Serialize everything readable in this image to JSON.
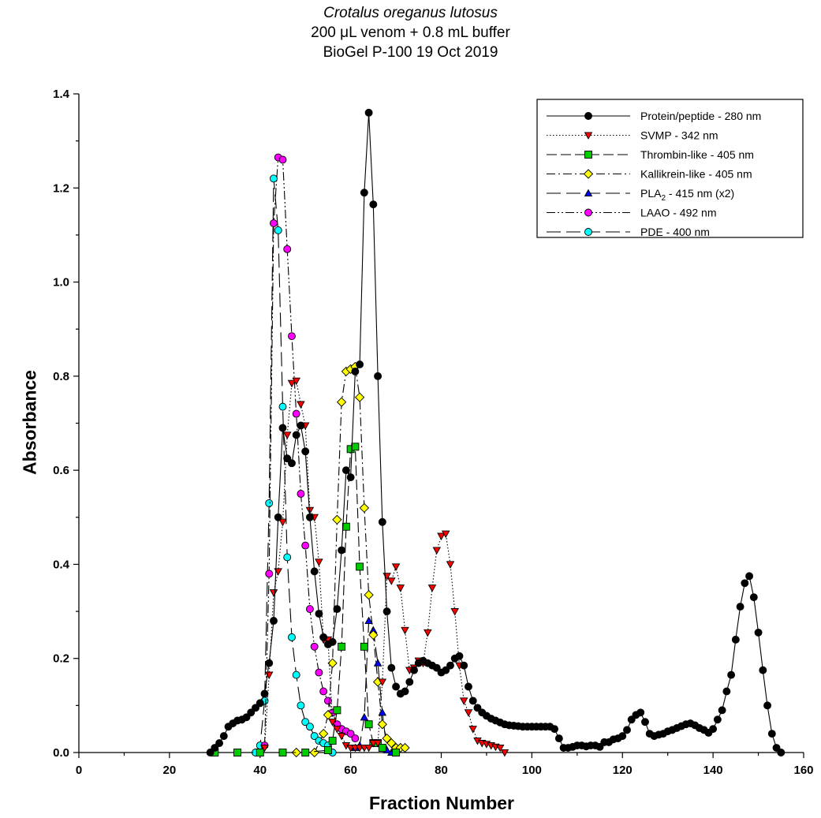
{
  "chart_data": {
    "type": "line",
    "title_lines": [
      "Crotalus oreganus lutosus",
      "200 μL venom + 0.8 mL buffer",
      "BioGel P-100 19 Oct 2019"
    ],
    "xlabel": "Fraction Number",
    "ylabel": "Absorbance",
    "xlim": [
      0,
      160
    ],
    "ylim": [
      0,
      1.4
    ],
    "x_ticks": [
      0,
      20,
      40,
      60,
      80,
      100,
      120,
      140,
      160
    ],
    "y_ticks": [
      "0.0",
      "0.2",
      "0.4",
      "0.6",
      "0.8",
      "1.0",
      "1.2",
      "1.4"
    ],
    "grid": false,
    "legend_position": "top-right",
    "series": [
      {
        "name": "Protein/peptide - 280 nm",
        "color": "#000000",
        "marker": "circle",
        "line_style": "solid",
        "points": [
          [
            29,
            0.0
          ],
          [
            30,
            0.01
          ],
          [
            31,
            0.02
          ],
          [
            32,
            0.035
          ],
          [
            33,
            0.055
          ],
          [
            34,
            0.062
          ],
          [
            35,
            0.068
          ],
          [
            36,
            0.07
          ],
          [
            37,
            0.075
          ],
          [
            38,
            0.085
          ],
          [
            39,
            0.095
          ],
          [
            40,
            0.105
          ],
          [
            41,
            0.125
          ],
          [
            42,
            0.19
          ],
          [
            43,
            0.28
          ],
          [
            44,
            0.5
          ],
          [
            45,
            0.69
          ],
          [
            46,
            0.625
          ],
          [
            47,
            0.615
          ],
          [
            48,
            0.675
          ],
          [
            49,
            0.695
          ],
          [
            50,
            0.64
          ],
          [
            51,
            0.5
          ],
          [
            52,
            0.385
          ],
          [
            53,
            0.295
          ],
          [
            54,
            0.245
          ],
          [
            55,
            0.23
          ],
          [
            56,
            0.235
          ],
          [
            57,
            0.305
          ],
          [
            58,
            0.43
          ],
          [
            59,
            0.6
          ],
          [
            60,
            0.585
          ],
          [
            61,
            0.81
          ],
          [
            62,
            0.825
          ],
          [
            63,
            1.19
          ],
          [
            64,
            1.36
          ],
          [
            65,
            1.165
          ],
          [
            66,
            0.8
          ],
          [
            67,
            0.49
          ],
          [
            68,
            0.3
          ],
          [
            69,
            0.18
          ],
          [
            70,
            0.14
          ],
          [
            71,
            0.125
          ],
          [
            72,
            0.13
          ],
          [
            73,
            0.15
          ],
          [
            74,
            0.175
          ],
          [
            75,
            0.19
          ],
          [
            76,
            0.195
          ],
          [
            77,
            0.19
          ],
          [
            78,
            0.185
          ],
          [
            79,
            0.18
          ],
          [
            80,
            0.17
          ],
          [
            81,
            0.175
          ],
          [
            82,
            0.185
          ],
          [
            83,
            0.2
          ],
          [
            84,
            0.205
          ],
          [
            85,
            0.185
          ],
          [
            86,
            0.14
          ],
          [
            87,
            0.11
          ],
          [
            88,
            0.095
          ],
          [
            89,
            0.085
          ],
          [
            90,
            0.078
          ],
          [
            91,
            0.072
          ],
          [
            92,
            0.068
          ],
          [
            93,
            0.064
          ],
          [
            94,
            0.06
          ],
          [
            95,
            0.058
          ],
          [
            96,
            0.057
          ],
          [
            97,
            0.056
          ],
          [
            98,
            0.055
          ],
          [
            99,
            0.055
          ],
          [
            100,
            0.055
          ],
          [
            101,
            0.055
          ],
          [
            102,
            0.055
          ],
          [
            103,
            0.055
          ],
          [
            104,
            0.055
          ],
          [
            105,
            0.05
          ],
          [
            106,
            0.03
          ],
          [
            107,
            0.01
          ],
          [
            108,
            0.01
          ],
          [
            109,
            0.012
          ],
          [
            110,
            0.015
          ],
          [
            111,
            0.015
          ],
          [
            112,
            0.013
          ],
          [
            113,
            0.015
          ],
          [
            114,
            0.015
          ],
          [
            115,
            0.012
          ],
          [
            116,
            0.022
          ],
          [
            117,
            0.022
          ],
          [
            118,
            0.028
          ],
          [
            119,
            0.03
          ],
          [
            120,
            0.035
          ],
          [
            121,
            0.048
          ],
          [
            122,
            0.07
          ],
          [
            123,
            0.08
          ],
          [
            124,
            0.085
          ],
          [
            125,
            0.065
          ],
          [
            126,
            0.04
          ],
          [
            127,
            0.035
          ],
          [
            128,
            0.038
          ],
          [
            129,
            0.04
          ],
          [
            130,
            0.045
          ],
          [
            131,
            0.048
          ],
          [
            132,
            0.052
          ],
          [
            133,
            0.056
          ],
          [
            134,
            0.06
          ],
          [
            135,
            0.062
          ],
          [
            136,
            0.058
          ],
          [
            137,
            0.052
          ],
          [
            138,
            0.048
          ],
          [
            139,
            0.042
          ],
          [
            140,
            0.05
          ],
          [
            141,
            0.07
          ],
          [
            142,
            0.09
          ],
          [
            143,
            0.13
          ],
          [
            144,
            0.165
          ],
          [
            145,
            0.24
          ],
          [
            146,
            0.31
          ],
          [
            147,
            0.36
          ],
          [
            148,
            0.375
          ],
          [
            149,
            0.33
          ],
          [
            150,
            0.255
          ],
          [
            151,
            0.175
          ],
          [
            152,
            0.1
          ],
          [
            153,
            0.04
          ],
          [
            154,
            0.01
          ],
          [
            155,
            0.0
          ]
        ]
      },
      {
        "name": "SVMP - 342 nm",
        "color": "#ff0000",
        "marker": "triangle-down",
        "line_style": "dotted",
        "points": [
          [
            41,
            0.01
          ],
          [
            42,
            0.165
          ],
          [
            43,
            0.34
          ],
          [
            44,
            0.385
          ],
          [
            45,
            0.49
          ],
          [
            46,
            0.675
          ],
          [
            47,
            0.785
          ],
          [
            48,
            0.79
          ],
          [
            49,
            0.74
          ],
          [
            50,
            0.695
          ],
          [
            51,
            0.515
          ],
          [
            52,
            0.5
          ],
          [
            53,
            0.405
          ],
          [
            54,
            0.24
          ],
          [
            55,
            0.24
          ],
          [
            56,
            0.065
          ],
          [
            57,
            0.05
          ],
          [
            58,
            0.035
          ],
          [
            59,
            0.015
          ],
          [
            60,
            0.01
          ],
          [
            61,
            0.01
          ],
          [
            62,
            0.01
          ],
          [
            63,
            0.01
          ],
          [
            64,
            0.01
          ],
          [
            65,
            0.02
          ],
          [
            66,
            0.02
          ],
          [
            67,
            0.15
          ],
          [
            68,
            0.375
          ],
          [
            69,
            0.365
          ],
          [
            70,
            0.395
          ],
          [
            71,
            0.35
          ],
          [
            72,
            0.26
          ],
          [
            73,
            0.175
          ],
          [
            74,
            0.18
          ],
          [
            75,
            0.195
          ],
          [
            76,
            0.19
          ],
          [
            77,
            0.255
          ],
          [
            78,
            0.35
          ],
          [
            79,
            0.43
          ],
          [
            80,
            0.46
          ],
          [
            81,
            0.465
          ],
          [
            82,
            0.4
          ],
          [
            83,
            0.3
          ],
          [
            84,
            0.185
          ],
          [
            85,
            0.11
          ],
          [
            86,
            0.085
          ],
          [
            87,
            0.05
          ],
          [
            88,
            0.025
          ],
          [
            89,
            0.02
          ],
          [
            90,
            0.018
          ],
          [
            91,
            0.015
          ],
          [
            92,
            0.012
          ],
          [
            93,
            0.01
          ],
          [
            94,
            0.0
          ]
        ]
      },
      {
        "name": "Thrombin-like -  405 nm",
        "color": "#00cc00",
        "marker": "square",
        "line_style": "dashed",
        "points": [
          [
            30,
            0.0
          ],
          [
            35,
            0.0
          ],
          [
            40,
            0.0
          ],
          [
            45,
            0.0
          ],
          [
            50,
            0.0
          ],
          [
            55,
            0.005
          ],
          [
            56,
            0.025
          ],
          [
            57,
            0.09
          ],
          [
            58,
            0.225
          ],
          [
            59,
            0.48
          ],
          [
            60,
            0.645
          ],
          [
            61,
            0.65
          ],
          [
            62,
            0.395
          ],
          [
            63,
            0.225
          ],
          [
            64,
            0.06
          ],
          [
            65,
            0.02
          ],
          [
            66,
            0.02
          ],
          [
            67,
            0.01
          ],
          [
            70,
            0.0
          ]
        ]
      },
      {
        "name": "Kallikrein-like - 405 nm",
        "color": "#ffff00",
        "marker": "diamond",
        "line_style": "dashdot",
        "points": [
          [
            48,
            0.0
          ],
          [
            52,
            0.0
          ],
          [
            54,
            0.04
          ],
          [
            55,
            0.08
          ],
          [
            56,
            0.19
          ],
          [
            57,
            0.495
          ],
          [
            58,
            0.745
          ],
          [
            59,
            0.81
          ],
          [
            60,
            0.815
          ],
          [
            61,
            0.82
          ],
          [
            62,
            0.755
          ],
          [
            63,
            0.52
          ],
          [
            64,
            0.335
          ],
          [
            65,
            0.25
          ],
          [
            66,
            0.15
          ],
          [
            67,
            0.06
          ],
          [
            68,
            0.03
          ],
          [
            69,
            0.02
          ],
          [
            70,
            0.01
          ],
          [
            71,
            0.01
          ],
          [
            72,
            0.01
          ]
        ]
      },
      {
        "name": "PLA₂ - 415 nm (x2)",
        "color": "#0000ff",
        "marker": "triangle-up",
        "line_style": "longdash",
        "points": [
          [
            61,
            0.01
          ],
          [
            62,
            0.015
          ],
          [
            63,
            0.075
          ],
          [
            64,
            0.28
          ],
          [
            65,
            0.26
          ],
          [
            66,
            0.19
          ],
          [
            67,
            0.085
          ],
          [
            68,
            0.005
          ],
          [
            69,
            0.0
          ]
        ]
      },
      {
        "name": "LAAO - 492 nm",
        "color": "#ff00ff",
        "marker": "circle",
        "line_style": "dashdotdot",
        "points": [
          [
            41,
            0.015
          ],
          [
            42,
            0.38
          ],
          [
            43,
            1.125
          ],
          [
            44,
            1.265
          ],
          [
            45,
            1.26
          ],
          [
            46,
            1.07
          ],
          [
            47,
            0.885
          ],
          [
            48,
            0.72
          ],
          [
            49,
            0.55
          ],
          [
            50,
            0.44
          ],
          [
            51,
            0.305
          ],
          [
            52,
            0.225
          ],
          [
            53,
            0.17
          ],
          [
            54,
            0.13
          ],
          [
            55,
            0.11
          ],
          [
            56,
            0.085
          ],
          [
            57,
            0.06
          ],
          [
            58,
            0.05
          ],
          [
            59,
            0.045
          ],
          [
            60,
            0.04
          ],
          [
            61,
            0.03
          ]
        ]
      },
      {
        "name": "PDE - 400 nm",
        "color": "#00ffff",
        "marker": "circle",
        "line_style": "longdash",
        "points": [
          [
            39,
            0.0
          ],
          [
            40,
            0.015
          ],
          [
            41,
            0.11
          ],
          [
            42,
            0.53
          ],
          [
            43,
            1.22
          ],
          [
            44,
            1.11
          ],
          [
            45,
            0.735
          ],
          [
            46,
            0.415
          ],
          [
            47,
            0.245
          ],
          [
            48,
            0.165
          ],
          [
            49,
            0.1
          ],
          [
            50,
            0.065
          ],
          [
            51,
            0.055
          ],
          [
            52,
            0.035
          ],
          [
            53,
            0.025
          ],
          [
            54,
            0.02
          ],
          [
            55,
            0.015
          ],
          [
            56,
            0.0
          ]
        ]
      }
    ]
  }
}
